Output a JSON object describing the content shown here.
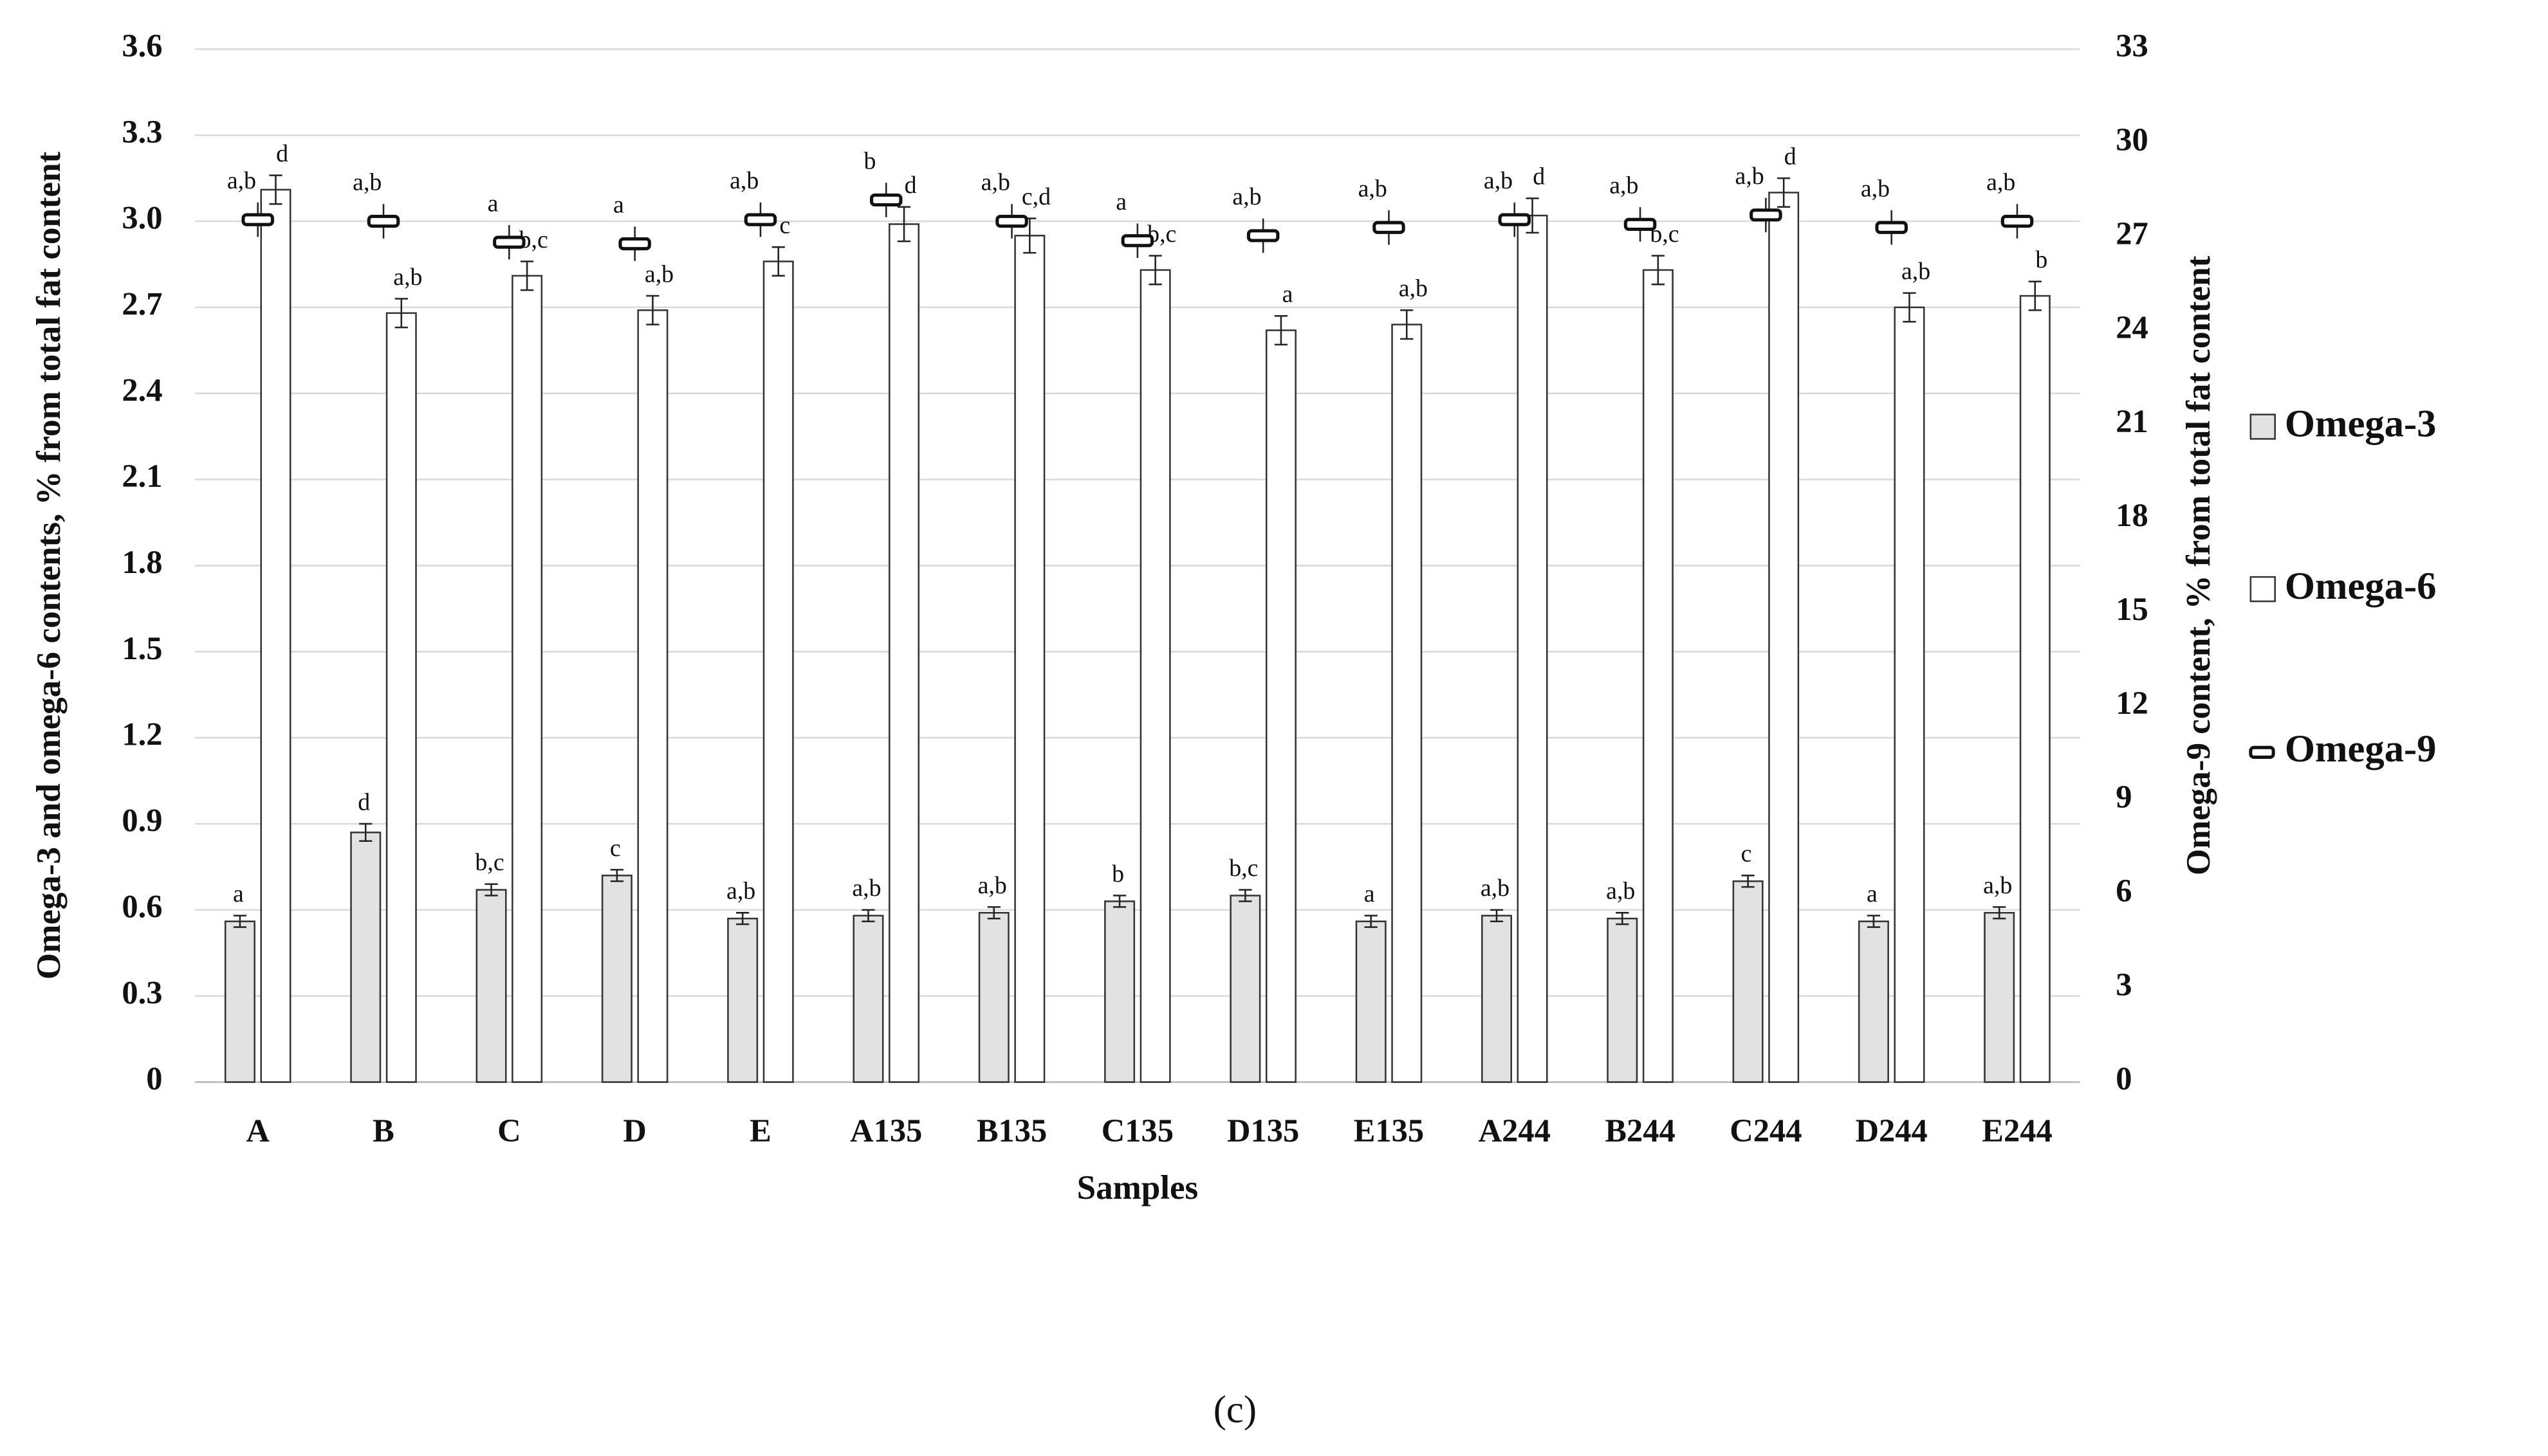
{
  "chart_data": {
    "type": "bar",
    "caption": "(c)",
    "x_label": "Samples",
    "y_label": "Omega-3 and omega-6 contents, % from total fat content",
    "y2_label": "Omega-9 content, % from total fat content",
    "categories": [
      "A",
      "B",
      "C",
      "D",
      "E",
      "A135",
      "B135",
      "C135",
      "D135",
      "E135",
      "A244",
      "B244",
      "C244",
      "D244",
      "E244"
    ],
    "ylim": [
      0,
      3.6
    ],
    "yticks": [
      0,
      0.3,
      0.6,
      0.9,
      1.2,
      1.5,
      1.8,
      2.1,
      2.4,
      2.7,
      {
        "value": 3,
        "label": "3.0"
      },
      3.3,
      3.6
    ],
    "y2lim": [
      0,
      33
    ],
    "y2ticks": [
      0,
      3,
      6,
      9,
      12,
      15,
      18,
      21,
      24,
      27,
      30,
      33
    ],
    "grid": true,
    "legend": "right",
    "series": [
      {
        "name": "Omega-3",
        "color": "#e2e2e2",
        "values": [
          0.56,
          0.87,
          0.67,
          0.72,
          0.57,
          0.58,
          0.59,
          0.63,
          0.65,
          0.56,
          0.58,
          0.57,
          0.7,
          0.56,
          0.59
        ],
        "errors": [
          0.02,
          0.03,
          0.02,
          0.02,
          0.02,
          0.02,
          0.02,
          0.02,
          0.02,
          0.02,
          0.02,
          0.02,
          0.02,
          0.02,
          0.02
        ],
        "labels": [
          "a",
          "d",
          "b,c",
          "c",
          "a,b",
          "a,b",
          "a,b",
          "b",
          "b,c",
          "a",
          "a,b",
          "a,b",
          "c",
          "a",
          "a,b"
        ]
      },
      {
        "name": "Omega-6",
        "color": "#ffffff",
        "values": [
          3.11,
          2.68,
          2.81,
          2.69,
          2.86,
          2.99,
          2.95,
          2.83,
          2.62,
          2.64,
          3.02,
          2.83,
          3.1,
          2.7,
          2.74
        ],
        "errors": [
          0.05,
          0.05,
          0.05,
          0.05,
          0.05,
          0.06,
          0.06,
          0.05,
          0.05,
          0.05,
          0.06,
          0.05,
          0.05,
          0.05,
          0.05
        ],
        "labels": [
          "d",
          "a,b",
          "b,c",
          "a,b",
          "c",
          "d",
          "c,d",
          "b,c",
          "a",
          "a,b",
          "d",
          "b,c",
          "d",
          "a,b",
          "b"
        ]
      },
      {
        "name": "Omega-9",
        "color": "#ffffff",
        "axis": "y2",
        "values": [
          27.55,
          27.5,
          26.83,
          26.78,
          27.55,
          28.18,
          27.5,
          26.88,
          27.04,
          27.3,
          27.55,
          27.4,
          27.7,
          27.3,
          27.5
        ],
        "errors": [
          0.55,
          0.55,
          0.55,
          0.55,
          0.55,
          0.55,
          0.55,
          0.55,
          0.55,
          0.55,
          0.55,
          0.55,
          0.55,
          0.55,
          0.55
        ],
        "labels": [
          "a,b",
          "a,b",
          "a",
          "a",
          "a,b",
          "b",
          "a,b",
          "a",
          "a,b",
          "a,b",
          "a,b",
          "a,b",
          "a,b",
          "a,b",
          "a,b"
        ]
      }
    ]
  }
}
